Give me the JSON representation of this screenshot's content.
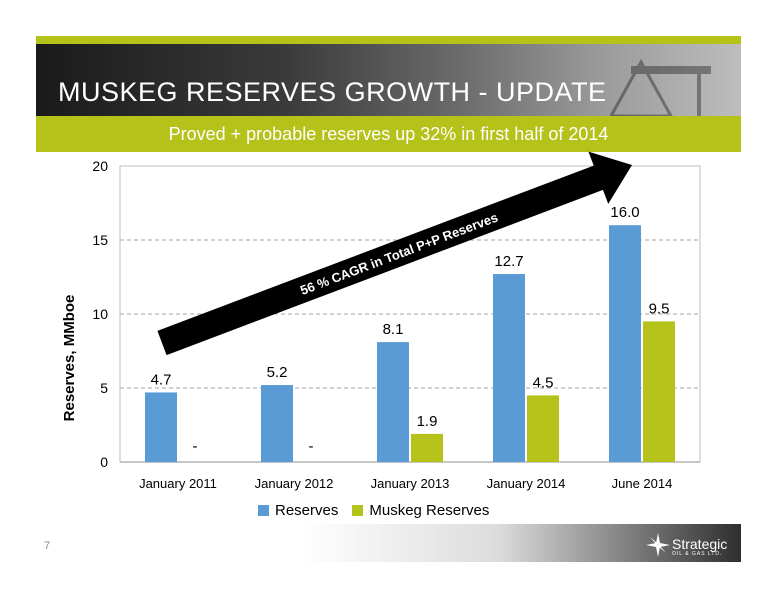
{
  "slide": {
    "title": "MUSKEG RESERVES GROWTH - UPDATE",
    "subtitle": "Proved + probable reserves up 32% in first half of 2014",
    "slide_number": "7",
    "logo_name": "Strategic",
    "logo_subtitle": "OIL & GAS LTD."
  },
  "annotation": {
    "arrow_label": "56 % CAGR in Total P+P Reserves"
  },
  "colors": {
    "accent_green": "#b5c21a",
    "reserves_blue": "#5b9bd5",
    "muskeg_green": "#b5c21a"
  },
  "chart_data": {
    "type": "bar",
    "categories": [
      "January 2011",
      "January 2012",
      "January 2013",
      "January 2014",
      "June 2014"
    ],
    "series": [
      {
        "name": "Reserves",
        "values": [
          4.7,
          5.2,
          8.1,
          12.7,
          16.0
        ],
        "labels": [
          "4.7",
          "5.2",
          "8.1",
          "12.7",
          "16.0"
        ],
        "color": "#5b9bd5"
      },
      {
        "name": "Muskeg Reserves",
        "values": [
          0,
          0,
          1.9,
          4.5,
          9.5
        ],
        "labels": [
          "-",
          "-",
          "1.9",
          "4.5",
          "9.5"
        ],
        "color": "#b5c21a"
      }
    ],
    "ylabel": "Reserves, MMboe",
    "ylim": [
      0,
      20
    ],
    "yticks": [
      0,
      5,
      10,
      15,
      20
    ],
    "grid": true,
    "legend": "bottom"
  }
}
